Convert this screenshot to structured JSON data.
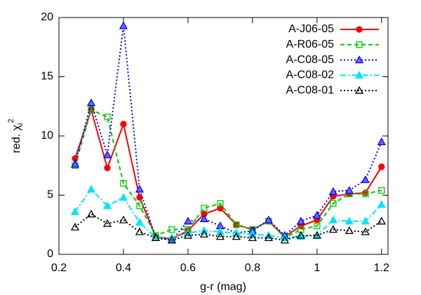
{
  "chart_data": {
    "type": "line",
    "x_label": "g-r (mag)",
    "y_label": "red. χ",
    "y_label_sub": "i",
    "y_label_sup": "2",
    "x": [
      0.25,
      0.3,
      0.35,
      0.4,
      0.45,
      0.5,
      0.55,
      0.6,
      0.65,
      0.7,
      0.75,
      0.8,
      0.85,
      0.9,
      0.95,
      1.0,
      1.05,
      1.1,
      1.15,
      1.2
    ],
    "xlim": [
      0.2,
      1.22
    ],
    "xticks": [
      0.2,
      0.4,
      0.6,
      0.8,
      1,
      1.2
    ],
    "ylim": [
      0,
      20
    ],
    "yticks": [
      0,
      5,
      10,
      15,
      20
    ],
    "legend": "upper right",
    "series": [
      {
        "name": "A-J06-05",
        "color": "#ff0000",
        "marker": "circle",
        "marker_fill": "#ff0000",
        "dash": "none",
        "values": [
          8.1,
          12.2,
          7.3,
          11.0,
          4.8,
          1.5,
          1.3,
          2.0,
          3.4,
          3.9,
          2.5,
          2.1,
          2.8,
          1.5,
          2.4,
          2.9,
          4.9,
          5.1,
          5.2,
          7.4
        ]
      },
      {
        "name": "A-R06-05",
        "color": "#00cc00",
        "marker": "square",
        "marker_fill": "none",
        "dash": "6 4",
        "values": [
          7.5,
          12.2,
          11.6,
          6.0,
          4.1,
          1.6,
          2.1,
          2.1,
          3.9,
          4.3,
          2.5,
          2.1,
          2.8,
          1.4,
          2.1,
          2.4,
          4.3,
          5.1,
          5.1,
          5.4
        ]
      },
      {
        "name": "A-C08-05",
        "color": "#0000ff",
        "marker": "triangle",
        "marker_fill": "#6a6aff",
        "dash": "2 3",
        "values": [
          7.6,
          12.8,
          8.4,
          19.3,
          5.5,
          1.4,
          1.2,
          2.8,
          3.0,
          2.4,
          1.8,
          2.0,
          2.9,
          1.6,
          2.8,
          3.3,
          5.3,
          5.4,
          6.3,
          9.5
        ]
      },
      {
        "name": "A-C08-02",
        "color": "#00e5ff",
        "marker": "triangle",
        "marker_fill": "#00e5ff",
        "dash": "8 3 2 3",
        "values": [
          3.6,
          5.5,
          4.1,
          4.8,
          2.7,
          1.4,
          1.4,
          1.8,
          2.0,
          1.9,
          1.8,
          1.7,
          1.6,
          1.4,
          1.5,
          1.6,
          2.9,
          2.8,
          2.8,
          4.2
        ]
      },
      {
        "name": "A-C08-01",
        "color": "#000000",
        "marker": "triangle",
        "marker_fill": "none",
        "dash": "2 3",
        "values": [
          2.3,
          3.4,
          2.6,
          2.9,
          1.9,
          1.4,
          1.2,
          1.6,
          1.7,
          1.5,
          1.5,
          1.4,
          1.4,
          1.2,
          1.6,
          1.6,
          2.1,
          2.0,
          1.9,
          2.8
        ]
      }
    ]
  }
}
